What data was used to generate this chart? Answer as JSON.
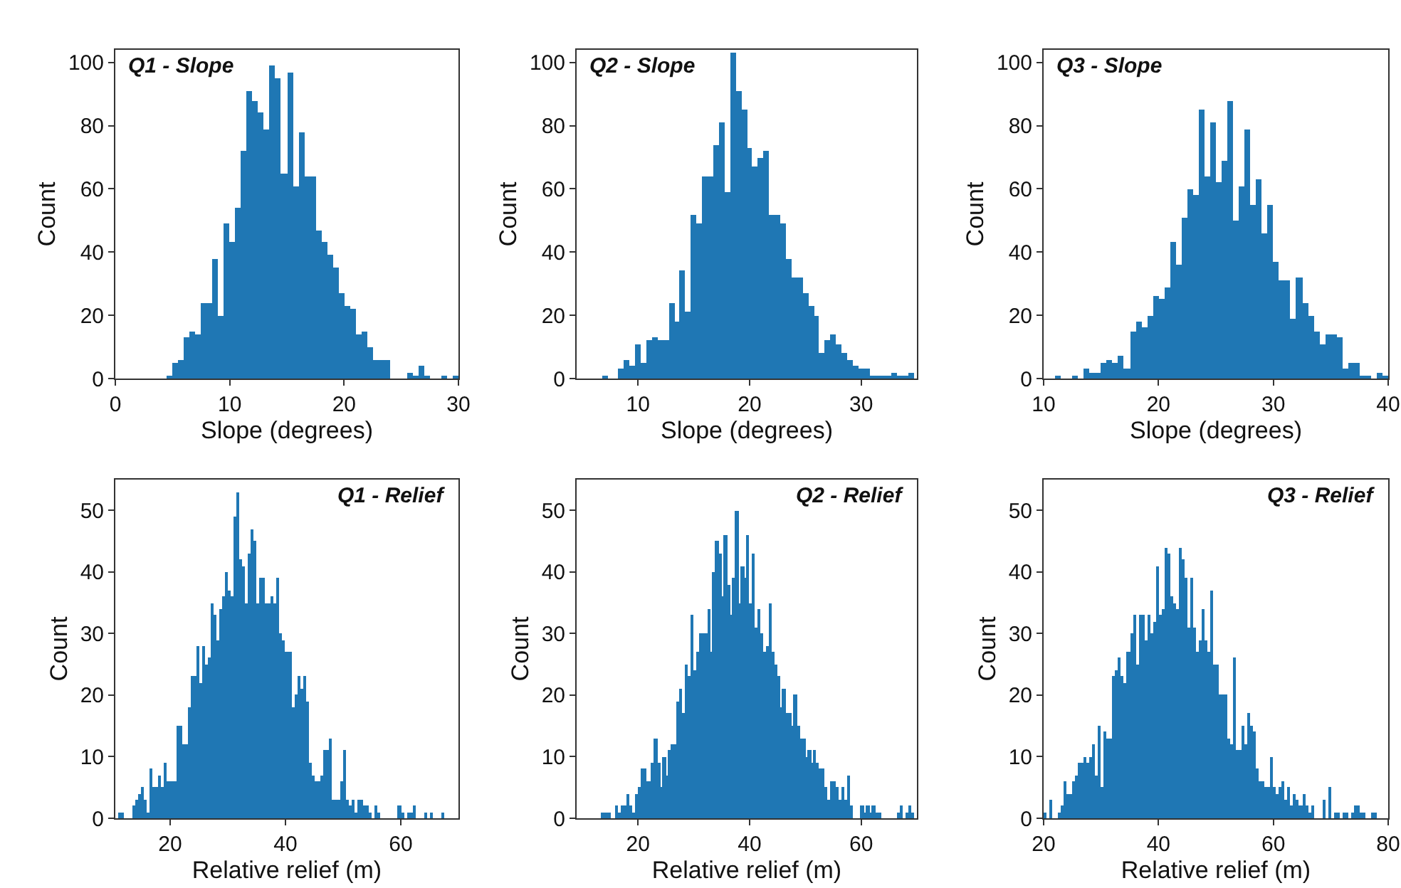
{
  "chart_data": [
    {
      "type": "histogram",
      "title": "Q1 - Slope",
      "xlabel": "Slope (degrees)",
      "ylabel": "Count",
      "color": "#1f77b4",
      "xlim": [
        0,
        30
      ],
      "xticks": [
        0,
        10,
        20,
        30
      ],
      "ylim": [
        0,
        104
      ],
      "yticks": [
        0,
        20,
        40,
        60,
        80,
        100
      ],
      "bins": [
        4.5,
        5.0,
        5.5,
        6.0,
        6.5,
        7.0,
        7.5,
        8.0,
        8.5,
        9.0,
        9.5,
        10.0,
        10.5,
        11.0,
        11.5,
        12.0,
        12.5,
        13.0,
        13.5,
        14.0,
        14.5,
        15.0,
        15.5,
        16.0,
        16.5,
        17.0,
        17.5,
        18.0,
        18.5,
        19.0,
        19.5,
        20.0,
        20.5,
        21.0,
        21.5,
        22.0,
        22.5,
        23.0,
        23.5,
        24.0,
        24.5,
        25.0,
        25.5,
        26.0,
        26.5,
        27.0,
        27.5,
        28.0,
        28.5,
        29.0,
        29.5,
        30.0
      ],
      "values": [
        1,
        5,
        6,
        13,
        15,
        14,
        24,
        24,
        38,
        20,
        49,
        43,
        54,
        72,
        91,
        88,
        84,
        79,
        99,
        95,
        65,
        97,
        61,
        78,
        64,
        64,
        47,
        43,
        39,
        35,
        27,
        23,
        22,
        14,
        15,
        10,
        6,
        6,
        6,
        0,
        0,
        0,
        2,
        1,
        4,
        1,
        0,
        0,
        1,
        0,
        1
      ]
    },
    {
      "type": "histogram",
      "title": "Q2 - Slope",
      "xlabel": "Slope (degrees)",
      "ylabel": "Count",
      "color": "#1f77b4",
      "xlim": [
        4.5,
        35
      ],
      "xticks": [
        10,
        20,
        30
      ],
      "ylim": [
        0,
        104
      ],
      "yticks": [
        0,
        20,
        40,
        60,
        80,
        100
      ],
      "bins": [
        6.75,
        7.25,
        7.75,
        8.25,
        8.75,
        9.25,
        9.75,
        10.25,
        10.75,
        11.25,
        11.75,
        12.25,
        12.75,
        13.25,
        13.75,
        14.25,
        14.75,
        15.25,
        15.75,
        16.25,
        16.75,
        17.25,
        17.75,
        18.25,
        18.75,
        19.25,
        19.75,
        20.25,
        20.75,
        21.25,
        21.75,
        22.25,
        22.75,
        23.25,
        23.75,
        24.25,
        24.75,
        25.25,
        25.75,
        26.25,
        26.75,
        27.25,
        27.75,
        28.25,
        28.75,
        29.25,
        29.75,
        30.25,
        30.75,
        31.25,
        31.75,
        32.25,
        32.75,
        33.25,
        33.75,
        34.25,
        34.75
      ],
      "values": [
        1,
        0,
        0,
        3,
        6,
        4,
        11,
        5,
        12,
        13,
        12,
        12,
        24,
        18,
        34,
        21,
        52,
        49,
        64,
        64,
        74,
        81,
        59,
        103,
        91,
        85,
        73,
        67,
        70,
        72,
        52,
        52,
        49,
        38,
        32,
        32,
        27,
        23,
        20,
        8,
        12,
        14,
        11,
        8,
        6,
        4,
        3,
        3,
        1,
        1,
        1,
        1,
        2,
        1,
        1,
        2
      ]
    },
    {
      "type": "histogram",
      "title": "Q3 - Slope",
      "xlabel": "Slope (degrees)",
      "ylabel": "Count",
      "color": "#1f77b4",
      "xlim": [
        10,
        40
      ],
      "xticks": [
        10,
        20,
        30,
        40
      ],
      "ylim": [
        0,
        104
      ],
      "yticks": [
        0,
        20,
        40,
        60,
        80,
        100
      ],
      "bins": [
        11.0,
        11.5,
        12.0,
        12.5,
        13.0,
        13.5,
        14.0,
        14.5,
        15.0,
        15.5,
        16.0,
        16.5,
        17.0,
        17.5,
        18.0,
        18.5,
        19.0,
        19.5,
        20.0,
        20.5,
        21.0,
        21.5,
        22.0,
        22.5,
        23.0,
        23.5,
        24.0,
        24.5,
        25.0,
        25.5,
        26.0,
        26.5,
        27.0,
        27.5,
        28.0,
        28.5,
        29.0,
        29.5,
        30.0,
        30.5,
        31.0,
        31.5,
        32.0,
        32.5,
        33.0,
        33.5,
        34.0,
        34.5,
        35.0,
        35.5,
        36.0,
        36.5,
        37.0,
        37.5,
        38.0,
        38.5,
        39.0,
        39.5,
        40.0
      ],
      "values": [
        1,
        0,
        0,
        1,
        0,
        3,
        2,
        2,
        5,
        6,
        5,
        7,
        3,
        15,
        18,
        16,
        20,
        26,
        25,
        29,
        43,
        36,
        51,
        60,
        58,
        85,
        64,
        81,
        62,
        69,
        88,
        50,
        61,
        79,
        55,
        63,
        46,
        55,
        37,
        31,
        31,
        19,
        32,
        24,
        20,
        15,
        11,
        14,
        14,
        13,
        3,
        5,
        5,
        1,
        1,
        0,
        2,
        1
      ]
    },
    {
      "type": "histogram",
      "title": "Q1 - Relief",
      "xlabel": "Relative relief (m)",
      "ylabel": "Count",
      "color": "#1f77b4",
      "xlim": [
        10.5,
        70
      ],
      "xticks": [
        20,
        40,
        60
      ],
      "ylim": [
        0,
        55
      ],
      "yticks": [
        0,
        10,
        20,
        30,
        40,
        50
      ],
      "bins": [
        11.0,
        11.5,
        12.0,
        12.5,
        13.0,
        13.5,
        14.0,
        14.5,
        15.0,
        15.5,
        16.0,
        16.5,
        17.0,
        17.5,
        18.0,
        18.5,
        19.0,
        19.5,
        20.0,
        20.5,
        21.0,
        21.5,
        22.0,
        22.5,
        23.0,
        23.5,
        24.0,
        24.5,
        25.0,
        25.5,
        26.0,
        26.5,
        27.0,
        27.5,
        28.0,
        28.5,
        29.0,
        29.5,
        30.0,
        30.5,
        31.0,
        31.5,
        32.0,
        32.5,
        33.0,
        33.5,
        34.0,
        34.5,
        35.0,
        35.5,
        36.0,
        36.5,
        37.0,
        37.5,
        38.0,
        38.5,
        39.0,
        39.5,
        40.0,
        40.5,
        41.0,
        41.5,
        42.0,
        42.5,
        43.0,
        43.5,
        44.0,
        44.5,
        45.0,
        45.5,
        46.0,
        46.5,
        47.0,
        47.5,
        48.0,
        48.5,
        49.0,
        49.5,
        50.0,
        50.5,
        51.0,
        51.5,
        52.0,
        52.5,
        53.0,
        53.5,
        54.0,
        54.5,
        55.0,
        55.5,
        56.0,
        56.5,
        57.0,
        57.5,
        58.0,
        58.5,
        59.0,
        59.5,
        60.0,
        60.5,
        61.0,
        61.5,
        62.0,
        62.5,
        63.0,
        63.5,
        64.0,
        64.5,
        65.0,
        65.5,
        66.0,
        66.5,
        67.0,
        67.5
      ],
      "values": [
        1,
        1,
        0,
        0,
        0,
        2,
        3,
        4,
        5,
        3,
        1,
        8,
        5,
        5,
        7,
        5,
        9,
        6,
        6,
        6,
        15,
        15,
        12,
        12,
        18,
        23,
        23,
        28,
        22,
        28,
        25,
        26,
        35,
        33,
        29,
        34,
        36,
        40,
        37,
        36,
        49,
        53,
        42,
        41,
        35,
        43,
        47,
        45,
        35,
        39,
        39,
        35,
        35,
        36,
        35,
        39,
        30,
        29,
        27,
        27,
        18,
        20,
        23,
        21,
        23,
        19,
        9,
        7,
        6,
        6,
        7,
        11,
        11,
        13,
        3,
        3,
        3,
        6,
        11,
        3,
        2,
        3,
        1,
        3,
        3,
        2,
        2,
        1,
        0,
        2,
        1,
        0,
        0,
        0,
        0,
        0,
        0,
        2,
        1,
        0,
        1,
        1,
        2,
        0,
        0,
        0,
        1,
        0,
        1,
        0,
        0,
        0,
        1
      ]
    },
    {
      "type": "histogram",
      "title": "Q2 - Relief",
      "xlabel": "Relative relief (m)",
      "ylabel": "Count",
      "color": "#1f77b4",
      "xlim": [
        9,
        70
      ],
      "xticks": [
        20,
        40,
        60
      ],
      "ylim": [
        0,
        55
      ],
      "yticks": [
        0,
        10,
        20,
        30,
        40,
        50
      ],
      "bins": [
        13.5,
        14.0,
        14.5,
        15.0,
        15.5,
        16.0,
        16.5,
        17.0,
        17.5,
        18.0,
        18.5,
        19.0,
        19.5,
        20.0,
        20.5,
        21.0,
        21.5,
        22.0,
        22.5,
        23.0,
        23.5,
        24.0,
        24.5,
        25.0,
        25.5,
        26.0,
        26.5,
        27.0,
        27.5,
        28.0,
        28.5,
        29.0,
        29.5,
        30.0,
        30.5,
        31.0,
        31.5,
        32.0,
        32.5,
        33.0,
        33.5,
        34.0,
        34.5,
        35.0,
        35.5,
        36.0,
        36.5,
        37.0,
        37.5,
        38.0,
        38.5,
        39.0,
        39.5,
        40.0,
        40.5,
        41.0,
        41.5,
        42.0,
        42.5,
        43.0,
        43.5,
        44.0,
        44.5,
        45.0,
        45.5,
        46.0,
        46.5,
        47.0,
        47.5,
        48.0,
        48.5,
        49.0,
        49.5,
        50.0,
        50.5,
        51.0,
        51.5,
        52.0,
        52.5,
        53.0,
        53.5,
        54.0,
        54.5,
        55.0,
        55.5,
        56.0,
        56.5,
        57.0,
        57.5,
        58.0,
        58.5,
        59.0,
        59.5,
        60.0,
        60.5,
        61.0,
        61.5,
        62.0,
        62.5,
        63.0,
        63.5,
        64.0,
        64.5,
        65.0,
        65.5,
        66.0,
        66.5,
        67.0,
        67.5,
        68.0,
        68.5,
        69.0,
        69.5
      ],
      "values": [
        1,
        1,
        1,
        0,
        0,
        2,
        1,
        2,
        2,
        4,
        2,
        1,
        4,
        5,
        8,
        8,
        6,
        6,
        9,
        13,
        9,
        5,
        10,
        7,
        11,
        12,
        12,
        19,
        21,
        17,
        25,
        23,
        33,
        24,
        27,
        30,
        30,
        30,
        34,
        27,
        40,
        45,
        43,
        36,
        46,
        38,
        33,
        39,
        50,
        35,
        41,
        39,
        46,
        35,
        43,
        31,
        34,
        30,
        27,
        28,
        35,
        27,
        25,
        23,
        18,
        21,
        17,
        17,
        15,
        20,
        15,
        13,
        13,
        10,
        11,
        9,
        11,
        9,
        8,
        8,
        5,
        3,
        6,
        6,
        5,
        3,
        5,
        3,
        7,
        2,
        0,
        0,
        0,
        2,
        1,
        2,
        1,
        2,
        1,
        1,
        0,
        0,
        0,
        0,
        0,
        0,
        1,
        2,
        0,
        1,
        2,
        1
      ]
    },
    {
      "type": "histogram",
      "title": "Q3 - Relief",
      "xlabel": "Relative relief (m)",
      "ylabel": "Count",
      "color": "#1f77b4",
      "xlim": [
        20,
        80
      ],
      "xticks": [
        20,
        40,
        60,
        80
      ],
      "ylim": [
        0,
        55
      ],
      "yticks": [
        0,
        10,
        20,
        30,
        40,
        50
      ],
      "bins": [
        20.0,
        20.5,
        21.0,
        21.5,
        22.0,
        22.5,
        23.0,
        23.5,
        24.0,
        24.5,
        25.0,
        25.5,
        26.0,
        26.5,
        27.0,
        27.5,
        28.0,
        28.5,
        29.0,
        29.5,
        30.0,
        30.5,
        31.0,
        31.5,
        32.0,
        32.5,
        33.0,
        33.5,
        34.0,
        34.5,
        35.0,
        35.5,
        36.0,
        36.5,
        37.0,
        37.5,
        38.0,
        38.5,
        39.0,
        39.5,
        40.0,
        40.5,
        41.0,
        41.5,
        42.0,
        42.5,
        43.0,
        43.5,
        44.0,
        44.5,
        45.0,
        45.5,
        46.0,
        46.5,
        47.0,
        47.5,
        48.0,
        48.5,
        49.0,
        49.5,
        50.0,
        50.5,
        51.0,
        51.5,
        52.0,
        52.5,
        53.0,
        53.5,
        54.0,
        54.5,
        55.0,
        55.5,
        56.0,
        56.5,
        57.0,
        57.5,
        58.0,
        58.5,
        59.0,
        59.5,
        60.0,
        60.5,
        61.0,
        61.5,
        62.0,
        62.5,
        63.0,
        63.5,
        64.0,
        64.5,
        65.0,
        65.5,
        66.0,
        66.5,
        67.0,
        67.5,
        68.0,
        68.5,
        69.0,
        69.5,
        70.0,
        70.5,
        71.0,
        71.5,
        72.0,
        72.5,
        73.0,
        73.5,
        74.0,
        74.5,
        75.0,
        75.5,
        76.0,
        76.5,
        77.0,
        77.5,
        78.0
      ],
      "values": [
        1,
        0,
        3,
        0,
        0,
        1,
        2,
        6,
        4,
        4,
        6,
        7,
        9,
        9,
        10,
        9,
        10,
        12,
        7,
        15,
        5,
        14,
        13,
        13,
        23,
        24,
        26,
        23,
        22,
        27,
        30,
        33,
        25,
        33,
        33,
        29,
        33,
        30,
        32,
        41,
        33,
        34,
        44,
        43,
        36,
        35,
        34,
        44,
        42,
        39,
        31,
        39,
        31,
        27,
        29,
        34,
        29,
        27,
        37,
        25,
        25,
        20,
        20,
        20,
        13,
        12,
        26,
        11,
        11,
        15,
        12,
        17,
        15,
        14,
        8,
        6,
        6,
        5,
        5,
        10,
        5,
        4,
        5,
        6,
        3,
        5,
        2,
        4,
        3,
        2,
        4,
        2,
        1,
        2,
        0,
        0,
        0,
        3,
        0,
        5,
        0,
        1,
        1,
        0,
        1,
        1,
        0,
        1,
        2,
        2,
        1,
        1,
        0,
        0,
        1,
        1
      ]
    }
  ]
}
